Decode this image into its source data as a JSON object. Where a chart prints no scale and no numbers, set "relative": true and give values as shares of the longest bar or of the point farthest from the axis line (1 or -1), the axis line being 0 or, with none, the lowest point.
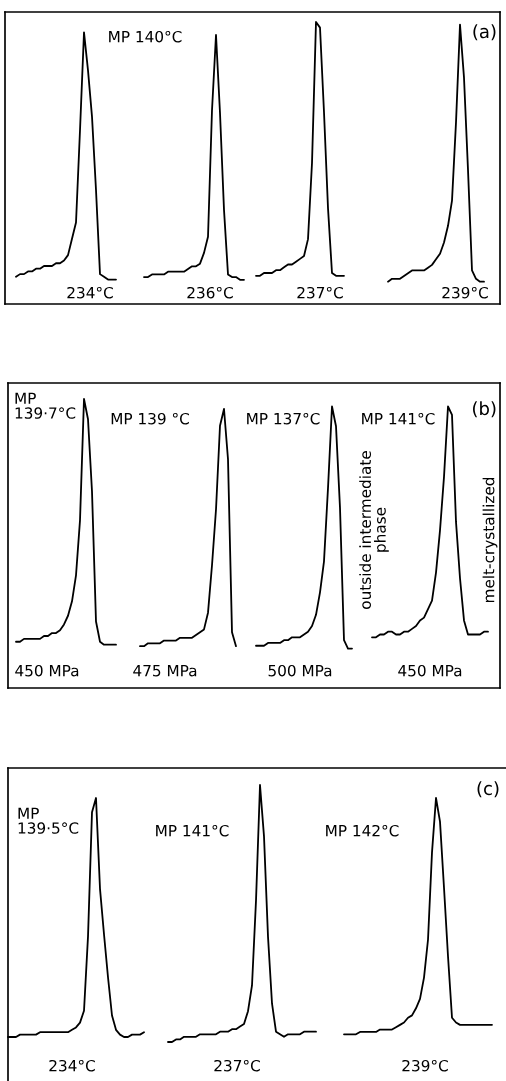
{
  "chart_data": [
    {
      "type": "line",
      "relative": true,
      "tick_labels": false,
      "line_style": "solid",
      "categories": [
        null,
        null,
        null,
        null,
        null,
        null,
        null,
        null,
        null,
        null,
        null,
        null,
        null,
        null,
        null,
        null,
        null,
        null,
        null,
        null,
        null,
        null,
        null,
        null,
        null,
        null
      ],
      "series": [
        {
          "color": "#000000",
          "values": [
            0.1,
            0.11,
            0.11,
            0.12,
            0.12,
            0.13,
            0.13,
            0.14,
            0.14,
            0.14,
            0.15,
            0.15,
            0.16,
            0.18,
            0.24,
            0.3,
            0.64,
            1,
            0.86,
            0.69,
            0.42,
            0.11,
            0.1,
            0.09,
            0.09,
            0.09
          ]
        }
      ],
      "annotations": [
        "MP 140°C",
        "234°C"
      ]
    },
    {
      "type": "line",
      "relative": true,
      "tick_labels": false,
      "line_style": "solid",
      "categories": [
        null,
        null,
        null,
        null,
        null,
        null,
        null,
        null,
        null,
        null,
        null,
        null,
        null,
        null,
        null,
        null,
        null,
        null,
        null,
        null,
        null,
        null,
        null,
        null,
        null,
        null
      ],
      "series": [
        {
          "color": "#000000",
          "values": [
            0.1,
            0.1,
            0.11,
            0.11,
            0.11,
            0.11,
            0.12,
            0.12,
            0.12,
            0.12,
            0.12,
            0.13,
            0.14,
            0.14,
            0.15,
            0.19,
            0.25,
            0.72,
            1,
            0.71,
            0.35,
            0.11,
            0.1,
            0.1,
            0.09,
            0.09
          ]
        }
      ],
      "annotations": [
        "236°C"
      ]
    },
    {
      "type": "line",
      "relative": true,
      "tick_labels": false,
      "line_style": "solid",
      "categories": [
        null,
        null,
        null,
        null,
        null,
        null,
        null,
        null,
        null,
        null,
        null,
        null,
        null,
        null,
        null,
        null,
        null,
        null,
        null,
        null,
        null,
        null,
        null
      ],
      "series": [
        {
          "color": "#000000",
          "values": [
            0.1,
            0.1,
            0.11,
            0.11,
            0.11,
            0.12,
            0.12,
            0.13,
            0.14,
            0.14,
            0.15,
            0.16,
            0.17,
            0.23,
            0.5,
            1,
            0.98,
            0.68,
            0.34,
            0.11,
            0.1,
            0.1,
            0.1
          ]
        }
      ],
      "annotations": [
        "237°C"
      ]
    },
    {
      "type": "line",
      "title": "(a)",
      "relative": true,
      "tick_labels": false,
      "line_style": "solid",
      "categories": [
        null,
        null,
        null,
        null,
        null,
        null,
        null,
        null,
        null,
        null,
        null,
        null,
        null,
        null,
        null,
        null,
        null,
        null,
        null,
        null,
        null,
        null,
        null,
        null,
        null
      ],
      "series": [
        {
          "color": "#000000",
          "values": [
            0.08,
            0.09,
            0.09,
            0.09,
            0.1,
            0.11,
            0.12,
            0.12,
            0.12,
            0.12,
            0.13,
            0.14,
            0.16,
            0.18,
            0.22,
            0.28,
            0.37,
            0.65,
            1,
            0.81,
            0.48,
            0.12,
            0.09,
            0.08,
            0.08
          ]
        }
      ],
      "annotations": [
        "239°C"
      ]
    },
    {
      "type": "line",
      "relative": true,
      "tick_labels": false,
      "line_style": "solid",
      "categories": [
        null,
        null,
        null,
        null,
        null,
        null,
        null,
        null,
        null,
        null,
        null,
        null,
        null,
        null,
        null,
        null,
        null,
        null,
        null,
        null,
        null,
        null,
        null,
        null,
        null,
        null
      ],
      "series": [
        {
          "color": "#000000",
          "values": [
            0.16,
            0.16,
            0.17,
            0.17,
            0.17,
            0.17,
            0.17,
            0.18,
            0.18,
            0.19,
            0.19,
            0.2,
            0.22,
            0.25,
            0.3,
            0.39,
            0.58,
            1,
            0.93,
            0.68,
            0.23,
            0.16,
            0.15,
            0.15,
            0.15,
            0.15
          ]
        }
      ],
      "annotations": [
        "MP\n139·7°C",
        "450 MPa"
      ]
    },
    {
      "type": "line",
      "relative": true,
      "tick_labels": false,
      "line_style": "solid",
      "categories": [
        null,
        null,
        null,
        null,
        null,
        null,
        null,
        null,
        null,
        null,
        null,
        null,
        null,
        null,
        null,
        null,
        null,
        null,
        null,
        null,
        null,
        null,
        null,
        null,
        null
      ],
      "series": [
        {
          "color": "#000000",
          "values": [
            0.15,
            0.15,
            0.16,
            0.16,
            0.16,
            0.16,
            0.17,
            0.17,
            0.17,
            0.17,
            0.18,
            0.18,
            0.18,
            0.18,
            0.19,
            0.2,
            0.21,
            0.27,
            0.44,
            0.64,
            0.94,
            1,
            0.82,
            0.2,
            0.15
          ]
        }
      ],
      "annotations": [
        "MP 139 °C",
        "475 MPa"
      ]
    },
    {
      "type": "line",
      "relative": true,
      "tick_labels": false,
      "line_style": "solid",
      "categories": [
        null,
        null,
        null,
        null,
        null,
        null,
        null,
        null,
        null,
        null,
        null,
        null,
        null,
        null,
        null,
        null,
        null,
        null,
        null,
        null,
        null,
        null,
        null,
        null,
        null
      ],
      "series": [
        {
          "color": "#000000",
          "values": [
            0.15,
            0.15,
            0.15,
            0.16,
            0.16,
            0.16,
            0.16,
            0.17,
            0.17,
            0.18,
            0.18,
            0.18,
            0.19,
            0.2,
            0.22,
            0.26,
            0.34,
            0.45,
            0.71,
            1,
            0.93,
            0.64,
            0.17,
            0.14,
            0.14
          ]
        }
      ],
      "annotations": [
        "MP 137°C",
        "outside intermediate\nphase",
        "500 MPa"
      ]
    },
    {
      "type": "line",
      "title": "(b)",
      "relative": true,
      "tick_labels": false,
      "line_style": "solid",
      "categories": [
        null,
        null,
        null,
        null,
        null,
        null,
        null,
        null,
        null,
        null,
        null,
        null,
        null,
        null,
        null,
        null,
        null,
        null,
        null,
        null,
        null,
        null,
        null,
        null,
        null,
        null,
        null,
        null,
        null,
        null
      ],
      "series": [
        {
          "color": "#000000",
          "values": [
            0.18,
            0.18,
            0.19,
            0.19,
            0.2,
            0.2,
            0.19,
            0.19,
            0.2,
            0.2,
            0.21,
            0.22,
            0.24,
            0.25,
            0.28,
            0.31,
            0.41,
            0.56,
            0.75,
            1,
            0.97,
            0.59,
            0.39,
            0.24,
            0.19,
            0.19,
            0.19,
            0.19,
            0.2,
            0.2
          ]
        }
      ],
      "annotations": [
        "MP 141°C",
        "melt-crystallized",
        "450 MPa"
      ]
    },
    {
      "type": "line",
      "relative": true,
      "tick_labels": false,
      "line_style": "solid",
      "categories": [
        null,
        null,
        null,
        null,
        null,
        null,
        null,
        null,
        null,
        null,
        null,
        null,
        null,
        null,
        null,
        null,
        null,
        null,
        null,
        null,
        null,
        null,
        null,
        null,
        null,
        null,
        null,
        null,
        null,
        null,
        null,
        null,
        null,
        null,
        null
      ],
      "series": [
        {
          "color": "#000000",
          "values": [
            0,
            0,
            0,
            0.01,
            0.01,
            0.01,
            0.01,
            0.01,
            0.02,
            0.02,
            0.02,
            0.02,
            0.02,
            0.02,
            0.02,
            0.02,
            0.03,
            0.04,
            0.06,
            0.11,
            0.42,
            0.94,
            1,
            0.62,
            0.43,
            0.25,
            0.09,
            0.03,
            0.01,
            0,
            0,
            0.01,
            0.01,
            0.01,
            0.02
          ]
        }
      ],
      "annotations": [
        "MP\n139·5°C",
        "234°C"
      ]
    },
    {
      "type": "line",
      "relative": true,
      "tick_labels": false,
      "line_style": "solid",
      "categories": [
        null,
        null,
        null,
        null,
        null,
        null,
        null,
        null,
        null,
        null,
        null,
        null,
        null,
        null,
        null,
        null,
        null,
        null,
        null,
        null,
        null,
        null,
        null,
        null,
        null,
        null,
        null,
        null,
        null,
        null,
        null,
        null,
        null,
        null,
        null,
        null,
        null,
        null
      ],
      "series": [
        {
          "color": "#000000",
          "values": [
            0,
            0,
            0.01,
            0.01,
            0.02,
            0.02,
            0.02,
            0.02,
            0.03,
            0.03,
            0.03,
            0.03,
            0.03,
            0.04,
            0.04,
            0.04,
            0.05,
            0.05,
            0.06,
            0.07,
            0.12,
            0.22,
            0.55,
            1,
            0.8,
            0.41,
            0.15,
            0.04,
            0.03,
            0.02,
            0.03,
            0.03,
            0.03,
            0.03,
            0.04,
            0.04,
            0.04,
            0.04
          ]
        }
      ],
      "annotations": [
        "MP 141°C",
        "237°C"
      ]
    },
    {
      "type": "line",
      "title": "(c)",
      "relative": true,
      "tick_labels": false,
      "line_style": "solid",
      "categories": [
        null,
        null,
        null,
        null,
        null,
        null,
        null,
        null,
        null,
        null,
        null,
        null,
        null,
        null,
        null,
        null,
        null,
        null,
        null,
        null,
        null,
        null,
        null,
        null,
        null,
        null,
        null,
        null,
        null,
        null,
        null,
        null,
        null,
        null,
        null,
        null,
        null,
        null
      ],
      "series": [
        {
          "color": "#000000",
          "values": [
            0,
            0,
            0,
            0,
            0.01,
            0.01,
            0.01,
            0.01,
            0.01,
            0.02,
            0.02,
            0.02,
            0.02,
            0.03,
            0.04,
            0.05,
            0.07,
            0.08,
            0.11,
            0.15,
            0.24,
            0.4,
            0.77,
            1,
            0.9,
            0.62,
            0.33,
            0.07,
            0.05,
            0.04,
            0.04,
            0.04,
            0.04,
            0.04,
            0.04,
            0.04,
            0.04,
            0.04
          ]
        }
      ],
      "annotations": [
        "MP 142°C",
        "239°C"
      ]
    }
  ]
}
